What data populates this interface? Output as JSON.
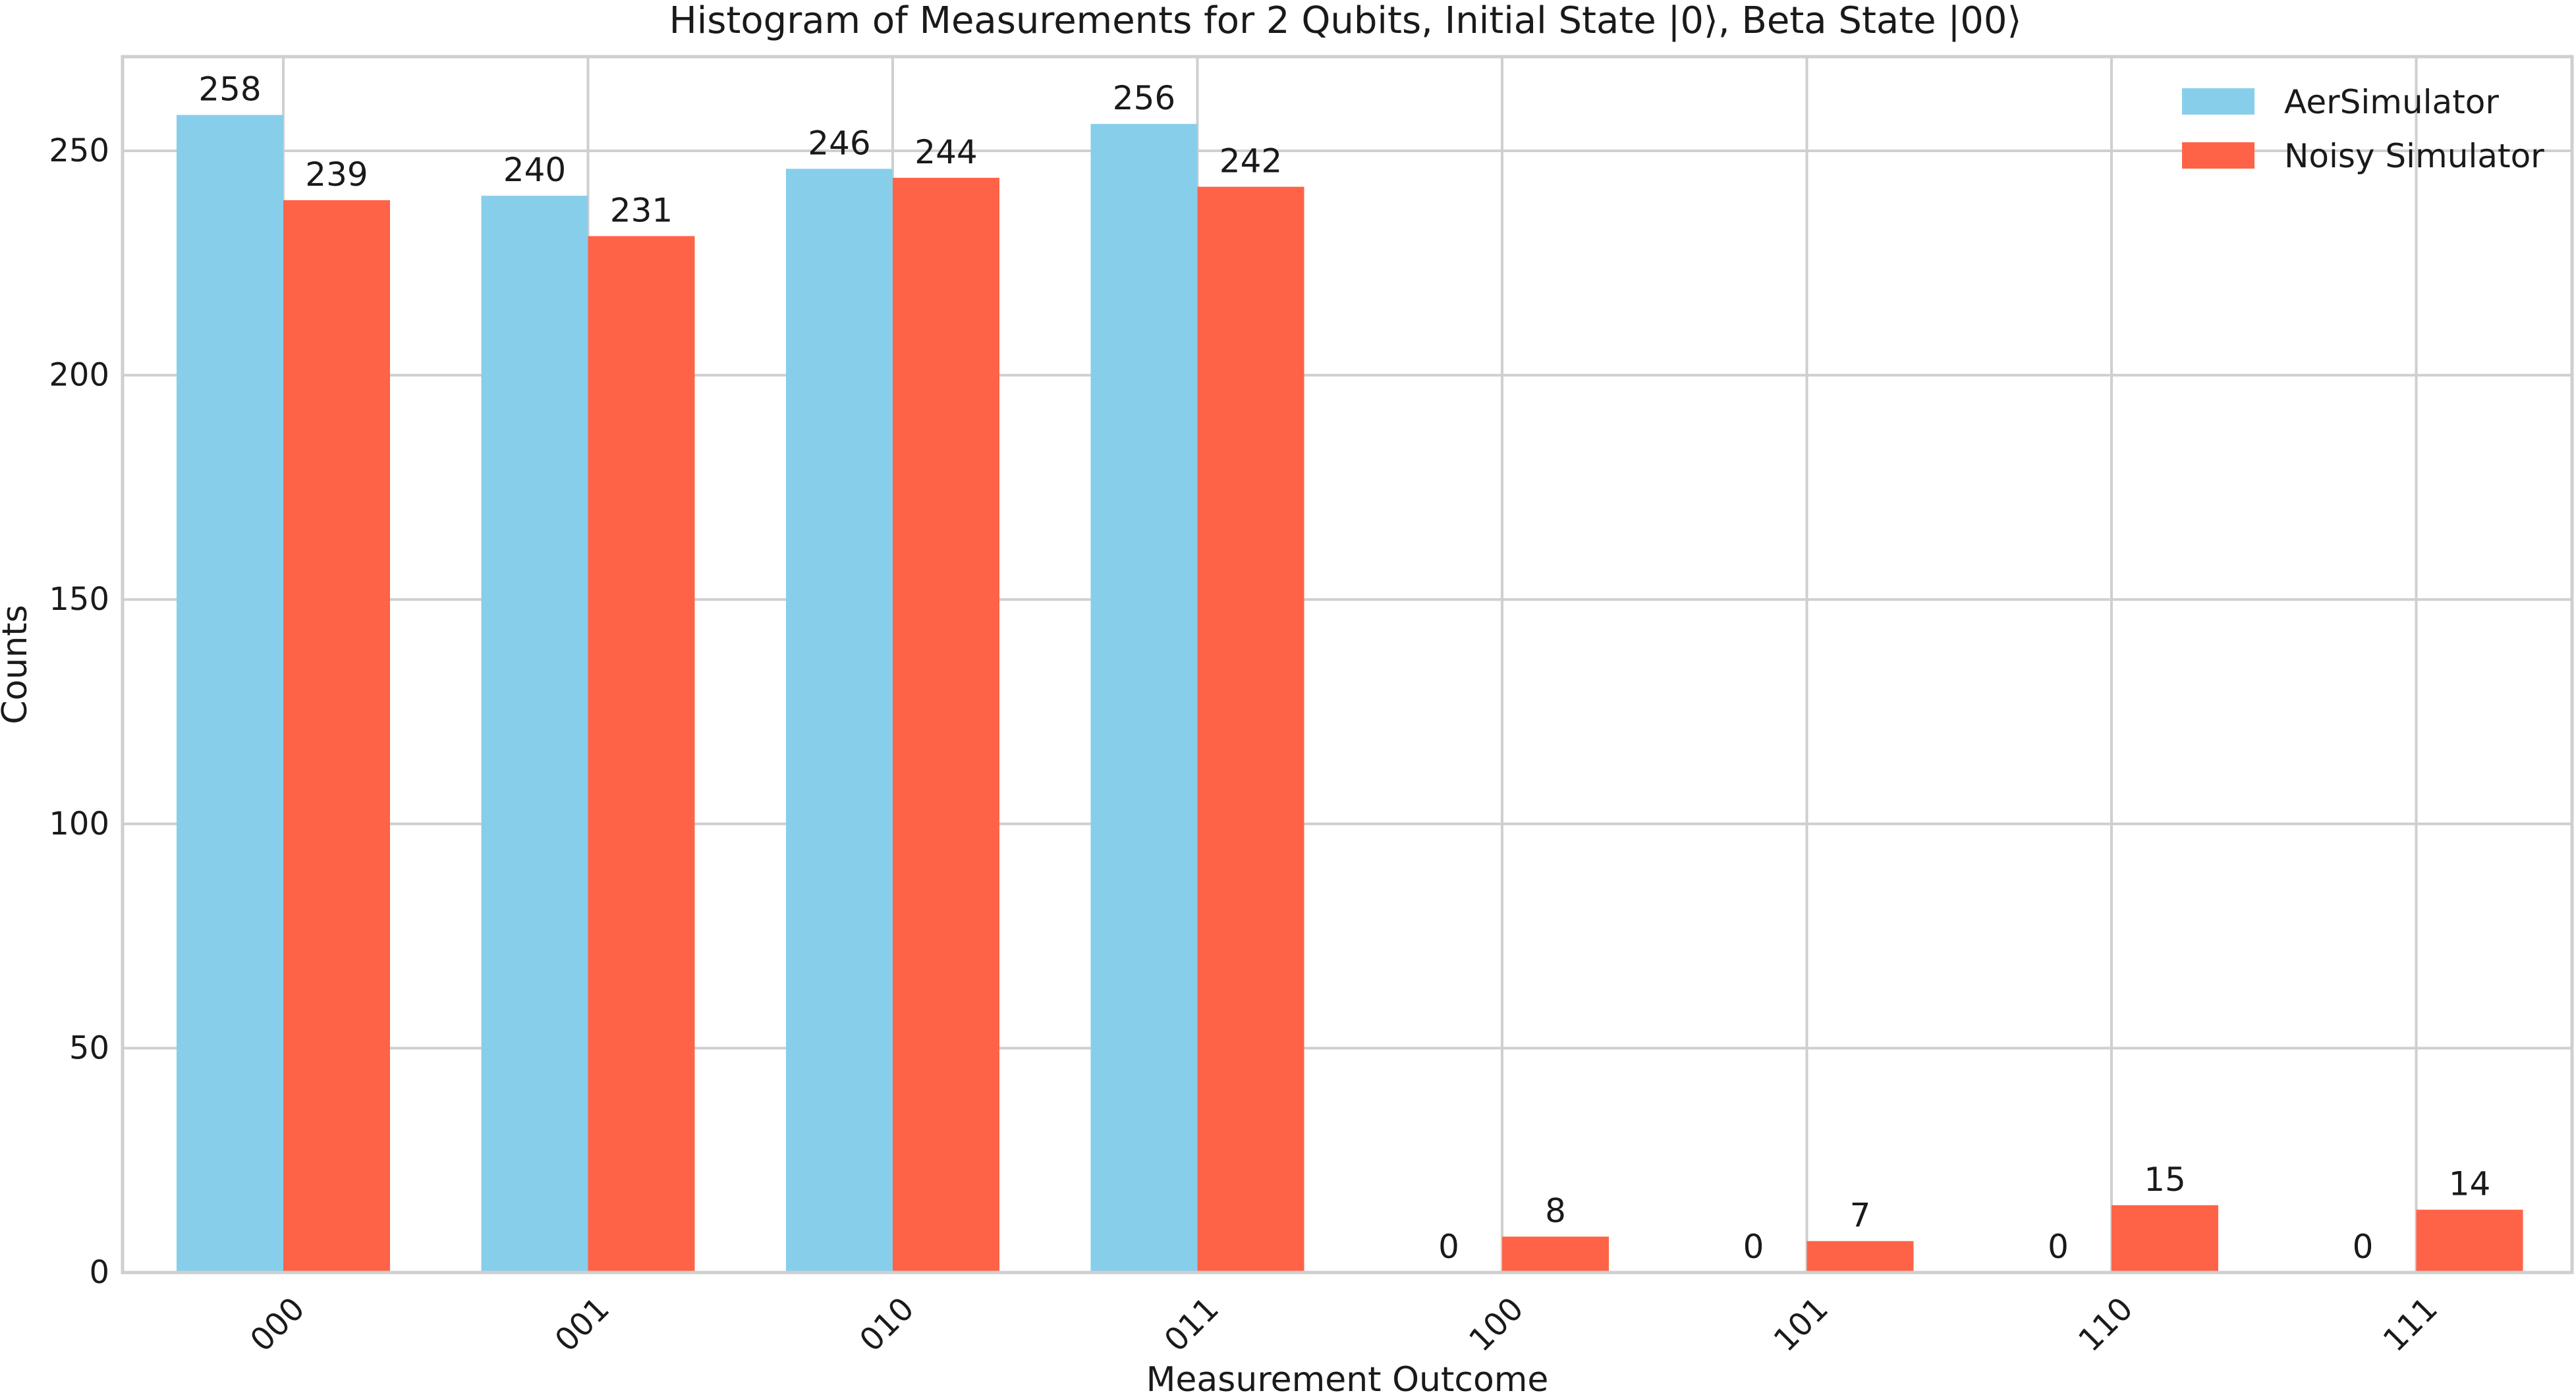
{
  "chart_data": {
    "type": "bar",
    "title": "Histogram of Measurements for 2 Qubits, Initial State |0⟩, Beta State |00⟩",
    "xlabel": "Measurement Outcome",
    "ylabel": "Counts",
    "categories": [
      "000",
      "001",
      "010",
      "011",
      "100",
      "101",
      "110",
      "111"
    ],
    "series": [
      {
        "name": "AerSimulator",
        "color": "#87CEEB",
        "values": [
          258,
          240,
          246,
          256,
          0,
          0,
          0,
          0
        ]
      },
      {
        "name": "Noisy Simulator",
        "color": "#FF6347",
        "values": [
          239,
          231,
          244,
          242,
          8,
          7,
          15,
          14
        ]
      }
    ],
    "ylim": [
      0,
      271
    ],
    "yticks": [
      0,
      50,
      100,
      150,
      200,
      250
    ],
    "grid": true,
    "legend_position": "top-right",
    "xtick_rotation": -45
  }
}
